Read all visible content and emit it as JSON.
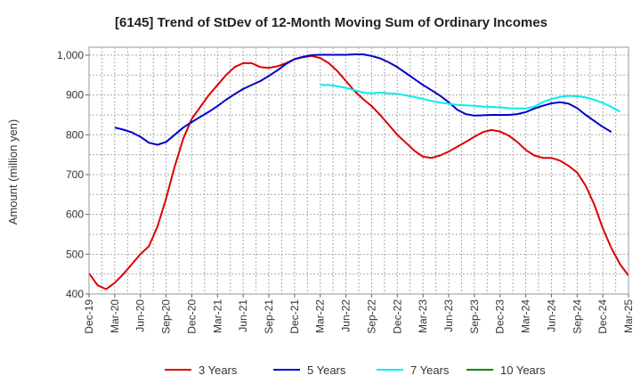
{
  "chart_data": {
    "type": "line",
    "title": "[6145]  Trend of StDev of 12-Month Moving Sum of Ordinary Incomes",
    "xlabel": "",
    "ylabel": "Amount (million yen)",
    "ylim": [
      400,
      1020
    ],
    "yticks": [
      400,
      500,
      600,
      700,
      800,
      900,
      1000
    ],
    "ytick_labels": [
      "400",
      "500",
      "600",
      "700",
      "800",
      "900",
      "1,000"
    ],
    "x_start": "Dec-19",
    "x_tick_labels": [
      "Dec-19",
      "Mar-20",
      "Jun-20",
      "Sep-20",
      "Dec-20",
      "Mar-21",
      "Jun-21",
      "Sep-21",
      "Dec-21",
      "Mar-22",
      "Jun-22",
      "Sep-22",
      "Dec-22",
      "Mar-23",
      "Jun-23",
      "Sep-23",
      "Dec-23",
      "Mar-24",
      "Jun-24",
      "Sep-24",
      "Dec-24",
      "Mar-25"
    ],
    "x_tick_step_months": 3,
    "grid": true,
    "legend_position": "bottom",
    "series": [
      {
        "name": "3 Years",
        "color": "#dd0000",
        "start_month": 0,
        "values": [
          452,
          422,
          412,
          428,
          450,
          475,
          500,
          520,
          570,
          640,
          720,
          790,
          840,
          870,
          900,
          925,
          950,
          970,
          980,
          980,
          970,
          968,
          972,
          980,
          990,
          995,
          998,
          993,
          980,
          960,
          935,
          910,
          890,
          872,
          850,
          825,
          800,
          780,
          760,
          745,
          742,
          748,
          758,
          770,
          782,
          795,
          807,
          812,
          808,
          798,
          782,
          762,
          748,
          742,
          742,
          735,
          722,
          705,
          672,
          625,
          565,
          515,
          475,
          446
        ]
      },
      {
        "name": "5 Years",
        "color": "#0000cc",
        "start_month": 3,
        "values": [
          818,
          813,
          806,
          795,
          780,
          775,
          782,
          800,
          818,
          832,
          845,
          858,
          872,
          888,
          902,
          915,
          925,
          935,
          948,
          962,
          978,
          990,
          996,
          1000,
          1001,
          1001,
          1001,
          1001,
          1002,
          1002,
          998,
          992,
          982,
          970,
          955,
          940,
          925,
          912,
          898,
          882,
          863,
          852,
          848,
          849,
          850,
          850,
          850,
          852,
          857,
          866,
          873,
          879,
          882,
          878,
          867,
          850,
          835,
          820,
          807
        ]
      },
      {
        "name": "7 Years",
        "color": "#00eeee",
        "start_month": 27,
        "values": [
          925,
          925,
          922,
          918,
          912,
          906,
          904,
          906,
          904,
          903,
          899,
          895,
          890,
          885,
          881,
          878,
          875,
          874,
          873,
          871,
          870,
          869,
          867,
          866,
          866,
          871,
          882,
          890,
          895,
          898,
          897,
          894,
          888,
          880,
          870,
          858
        ]
      },
      {
        "name": "10 Years",
        "color": "#008800",
        "start_month": 0,
        "values": []
      }
    ]
  }
}
